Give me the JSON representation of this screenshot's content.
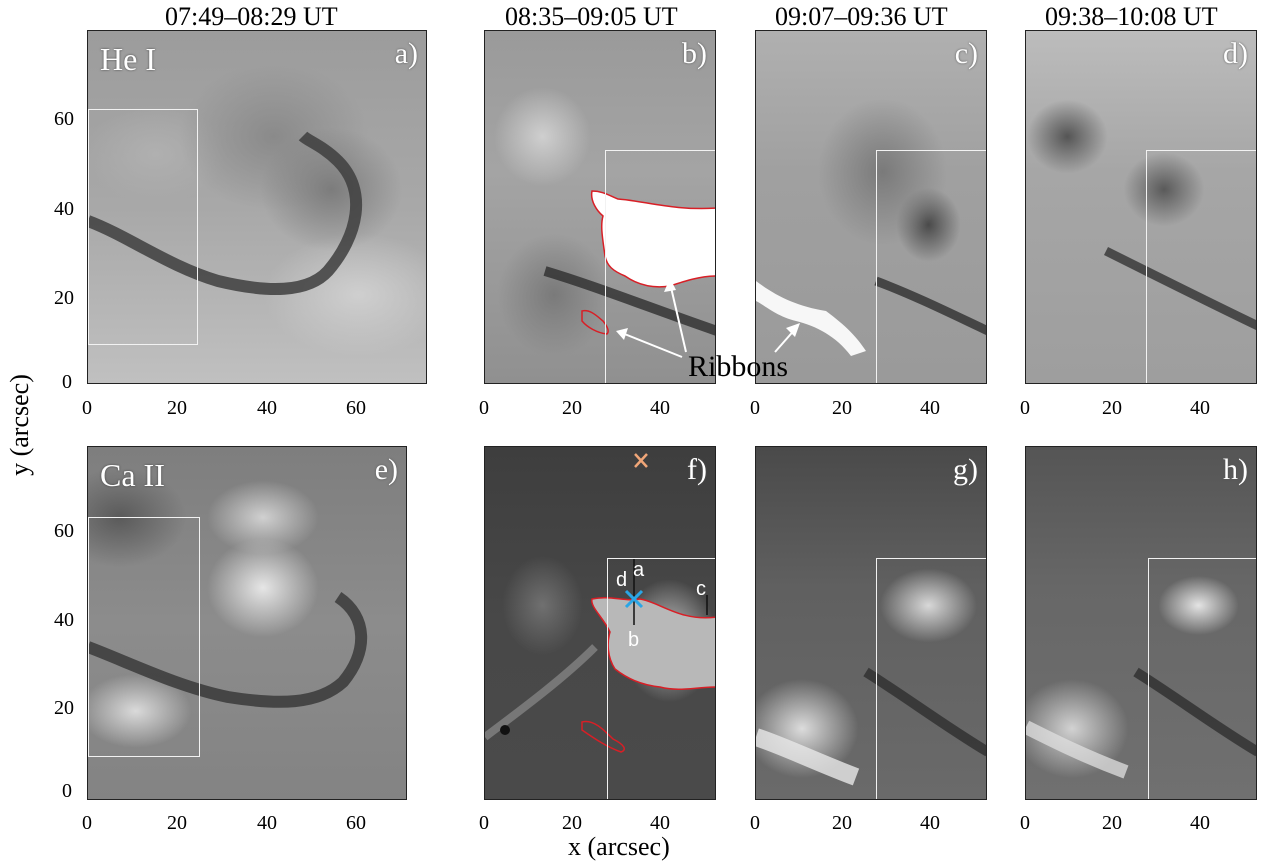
{
  "titles": [
    "07:49–08:29 UT",
    "08:35–09:05 UT",
    "09:07–09:36 UT",
    "09:38–10:08 UT"
  ],
  "row_labels": {
    "top": "He I",
    "bottom": "Ca II"
  },
  "panel_letters": [
    "a)",
    "b)",
    "c)",
    "d)",
    "e)",
    "f)",
    "g)",
    "h)"
  ],
  "axes": {
    "ylabel": "y  (arcsec)",
    "xlabel": "x  (arcsec)",
    "y_ticks": [
      "60",
      "40",
      "20",
      "0"
    ],
    "x_ticks_wide": [
      "0",
      "20",
      "40",
      "60"
    ],
    "x_ticks_narrow": [
      "0",
      "20",
      "40"
    ]
  },
  "annotations": {
    "ribbons": "Ribbons",
    "slit_markers": {
      "a": "a",
      "b": "b",
      "c": "c",
      "d": "d"
    },
    "cross_orange": "x"
  },
  "colors": {
    "contour": "#d81f26",
    "cross_blue": "#2aa6e6",
    "cross_orange": "#f0a678",
    "box": "#f2f2f2"
  }
}
